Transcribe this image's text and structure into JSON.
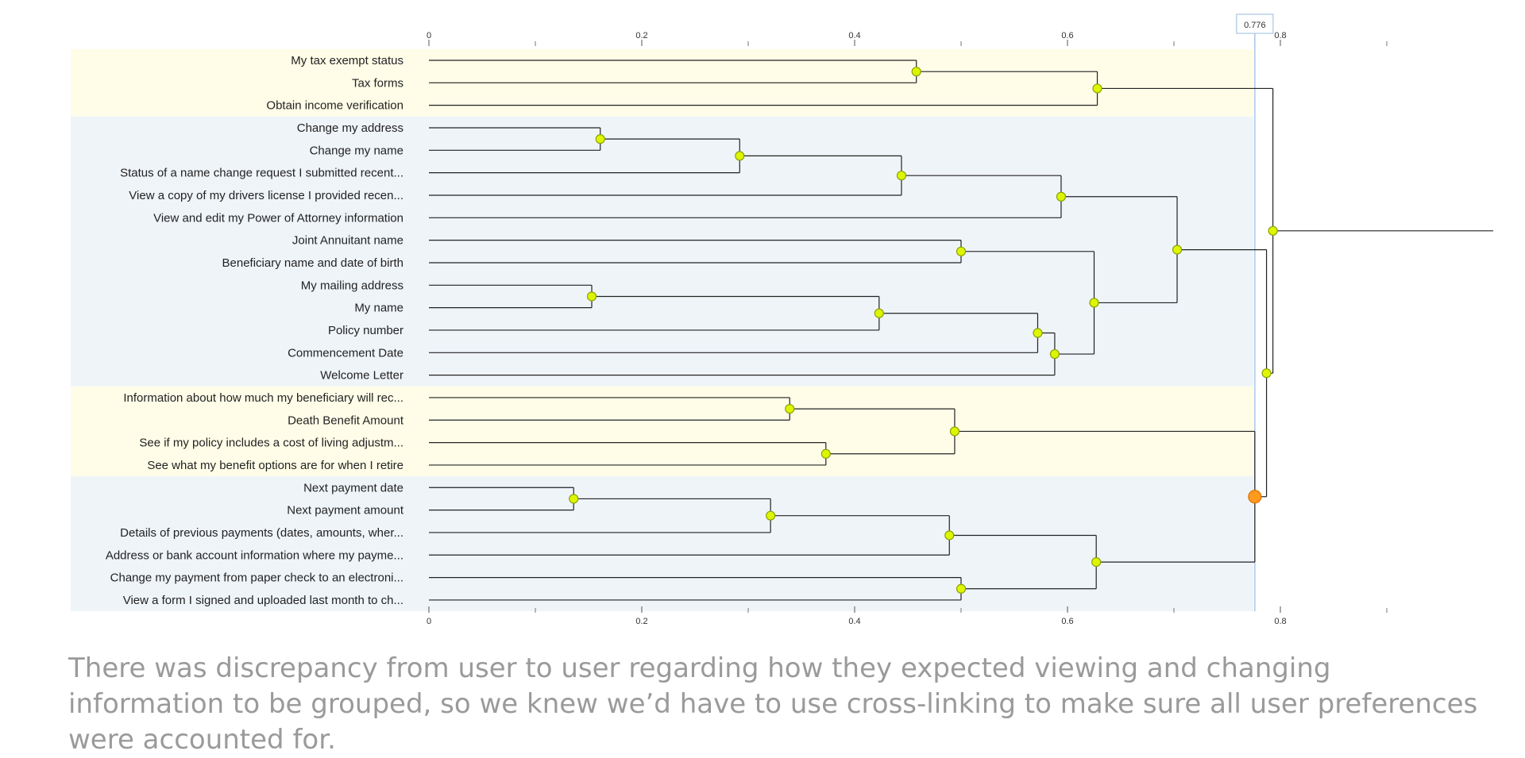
{
  "caption": "There was discrepancy from user to user regarding how they expected viewing and changing information to be grouped, so we knew we’d have to use cross-linking to make sure all user preferences were accounted for.",
  "colors": {
    "band_yellow": "#fffde8",
    "band_blue": "#eff4f9",
    "node_fill": "#ddf500",
    "node_stroke": "#8aa300",
    "highlight_node": "#ff9a1f",
    "threshold_line": "#a9c6e6",
    "line": "#222222"
  },
  "chart_data": {
    "type": "dendrogram",
    "orientation": "horizontal",
    "xlim": [
      0,
      0.9
    ],
    "x_ticks": [
      "0",
      "0.2",
      "0.4",
      "0.6",
      "0.8"
    ],
    "x_tick_values": [
      0,
      0.2,
      0.4,
      0.6,
      0.8
    ],
    "minor_ticks": [
      0.1,
      0.3,
      0.5,
      0.7,
      0.9
    ],
    "threshold": {
      "value": 0.776,
      "label": "0.776"
    },
    "leaves": [
      "My tax exempt status",
      "Tax forms",
      "Obtain income verification",
      "Change my address",
      "Change my name",
      "Status of a name change request I submitted recent...",
      "View a copy of my drivers license I provided recen...",
      "View and edit my Power of Attorney information",
      "Joint Annuitant name",
      "Beneficiary name and date of birth",
      "My mailing address",
      "My name",
      "Policy number",
      "Commencement Date",
      "Welcome Letter",
      "Information about how much my beneficiary will rec...",
      "Death Benefit Amount",
      "See if my policy includes a cost of living adjustm...",
      "See what my benefit options are for when I retire",
      "Next payment date",
      "Next payment amount",
      "Details of previous payments (dates, amounts, wher...",
      "Address or bank account information where my payme...",
      "Change my payment from paper check to an electroni...",
      "View a form I signed and uploaded last month to ch..."
    ],
    "clusters": [
      {
        "start": 0,
        "end": 2,
        "color": "band_yellow"
      },
      {
        "start": 3,
        "end": 14,
        "color": "band_blue"
      },
      {
        "start": 15,
        "end": 18,
        "color": "band_yellow"
      },
      {
        "start": 19,
        "end": 24,
        "color": "band_blue"
      }
    ],
    "merges": [
      {
        "id": "m1",
        "a": 0,
        "b": 1,
        "height": 0.458
      },
      {
        "id": "m2",
        "a": "m1",
        "b": 2,
        "height": 0.628
      },
      {
        "id": "m3",
        "a": 3,
        "b": 4,
        "height": 0.161
      },
      {
        "id": "m4",
        "a": "m3",
        "b": 5,
        "height": 0.292
      },
      {
        "id": "m5",
        "a": "m4",
        "b": 6,
        "height": 0.444
      },
      {
        "id": "m6",
        "a": "m5",
        "b": 7,
        "height": 0.594
      },
      {
        "id": "m7",
        "a": 8,
        "b": 9,
        "height": 0.5
      },
      {
        "id": "m8",
        "a": 10,
        "b": 11,
        "height": 0.153
      },
      {
        "id": "m9",
        "a": "m8",
        "b": 12,
        "height": 0.423
      },
      {
        "id": "m10",
        "a": "m9",
        "b": 13,
        "height": 0.572
      },
      {
        "id": "m11",
        "a": "m10",
        "b": 14,
        "height": 0.588
      },
      {
        "id": "m12",
        "a": "m7",
        "b": "m11",
        "height": 0.625
      },
      {
        "id": "m13",
        "a": "m6",
        "b": "m12",
        "height": 0.703
      },
      {
        "id": "m14",
        "a": 15,
        "b": 16,
        "height": 0.339
      },
      {
        "id": "m15",
        "a": 17,
        "b": 18,
        "height": 0.373
      },
      {
        "id": "m16",
        "a": "m14",
        "b": "m15",
        "height": 0.494
      },
      {
        "id": "m17",
        "a": 19,
        "b": 20,
        "height": 0.136
      },
      {
        "id": "m18",
        "a": "m17",
        "b": 21,
        "height": 0.321
      },
      {
        "id": "m19",
        "a": "m18",
        "b": 22,
        "height": 0.489
      },
      {
        "id": "m20",
        "a": 23,
        "b": 24,
        "height": 0.5
      },
      {
        "id": "m21",
        "a": "m19",
        "b": "m20",
        "height": 0.627
      },
      {
        "id": "m22",
        "a": "m16",
        "b": "m21",
        "height": 0.776,
        "highlight": true
      },
      {
        "id": "m23",
        "a": "m13",
        "b": "m22",
        "height": 0.787
      },
      {
        "id": "m24",
        "a": "m2",
        "b": "m23",
        "height": 0.793
      }
    ],
    "root_extends_to": 1.0
  }
}
